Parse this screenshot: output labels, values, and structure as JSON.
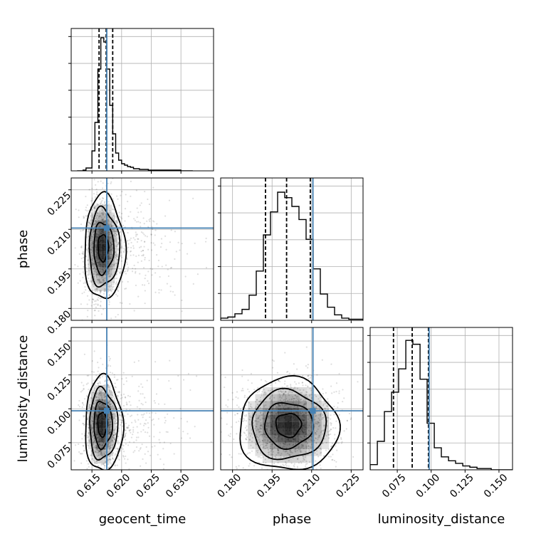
{
  "chart_data": {
    "type": "corner",
    "parameters": [
      "geocent_time",
      "phase",
      "luminosity_distance"
    ],
    "truth_color": "#4682b4",
    "grid": true,
    "axes": {
      "geocent_time": {
        "range": [
          0.6115,
          0.6355
        ],
        "ticks": [
          0.615,
          0.62,
          0.625,
          0.63
        ],
        "tick_labels": [
          "0.615",
          "0.620",
          "0.625",
          "0.630"
        ]
      },
      "phase": {
        "range": [
          0.1755,
          0.2295
        ],
        "ticks": [
          0.18,
          0.195,
          0.21,
          0.225
        ],
        "tick_labels": [
          "0.180",
          "0.195",
          "0.210",
          "0.225"
        ]
      },
      "luminosity_distance": {
        "range": [
          0.055,
          0.16
        ],
        "ticks": [
          0.075,
          0.1,
          0.125,
          0.15
        ],
        "tick_labels": [
          "0.075",
          "0.100",
          "0.125",
          "0.150"
        ]
      }
    },
    "truths": {
      "geocent_time": 0.6175,
      "phase": 0.2105,
      "luminosity_distance": 0.0985
    },
    "quantiles": {
      "geocent_time": [
        0.6162,
        0.6174,
        0.6185
      ],
      "phase": [
        0.1925,
        0.2005,
        0.2095
      ],
      "luminosity_distance": [
        0.0722,
        0.086,
        0.098
      ]
    },
    "histograms": {
      "geocent_time": {
        "edges": [
          0.6125,
          0.613,
          0.6135,
          0.614,
          0.6145,
          0.615,
          0.6155,
          0.616,
          0.6165,
          0.617,
          0.6175,
          0.618,
          0.6185,
          0.619,
          0.6195,
          0.62,
          0.6205,
          0.621,
          0.6215,
          0.622,
          0.6225,
          0.623,
          0.6235,
          0.624,
          0.6245,
          0.625,
          0.6255,
          0.626,
          0.6265,
          0.627,
          0.6275,
          0.628,
          0.6285,
          0.629,
          0.6295,
          0.63,
          0.6305,
          0.631,
          0.6315,
          0.632
        ],
        "counts": [
          0,
          0,
          1,
          4,
          4,
          28,
          68,
          143,
          187,
          181,
          143,
          92,
          52,
          25,
          15,
          10,
          8,
          6,
          5,
          3,
          3,
          2,
          2,
          2,
          1,
          1,
          1,
          1,
          1,
          1,
          1,
          1,
          1,
          1,
          1,
          0,
          0,
          0,
          0
        ],
        "ylim": [
          0,
          200
        ]
      },
      "phase": {
        "edges": [
          0.1755,
          0.1782,
          0.1809,
          0.1836,
          0.1863,
          0.189,
          0.1917,
          0.1944,
          0.1971,
          0.1998,
          0.2025,
          0.2052,
          0.2079,
          0.2106,
          0.2133,
          0.216,
          0.2187,
          0.2214,
          0.2241,
          0.2268,
          0.2295
        ],
        "counts": [
          2,
          3,
          6,
          10,
          23,
          45,
          78,
          99,
          117,
          112,
          104,
          92,
          74,
          47,
          24,
          12,
          5,
          2,
          1,
          1
        ],
        "ylim": [
          0,
          130
        ]
      },
      "luminosity_distance": {
        "edges": [
          0.055,
          0.0603,
          0.0655,
          0.0708,
          0.076,
          0.0813,
          0.0865,
          0.0918,
          0.097,
          0.1023,
          0.1075,
          0.1128,
          0.118,
          0.1233,
          0.1285,
          0.1338,
          0.139,
          0.1443,
          0.1495,
          0.1548,
          0.16
        ],
        "counts": [
          4,
          22,
          45,
          60,
          78,
          100,
          97,
          70,
          36,
          17,
          10,
          7,
          5,
          3,
          2,
          1,
          1,
          0,
          0,
          0
        ],
        "ylim": [
          0,
          110
        ]
      }
    },
    "pair_2d": [
      {
        "x": "geocent_time",
        "y": "phase",
        "center": [
          0.6168,
          0.203
        ],
        "sigma": [
          0.0013,
          0.0085
        ],
        "tail_x": 0.0045
      },
      {
        "x": "geocent_time",
        "y": "luminosity_distance",
        "center": [
          0.6167,
          0.0885
        ],
        "sigma": [
          0.0012,
          0.015
        ],
        "tail_x": 0.004
      },
      {
        "x": "phase",
        "y": "luminosity_distance",
        "center": [
          0.2012,
          0.088
        ],
        "sigma": [
          0.008,
          0.0145
        ],
        "tail_x": 0.0
      }
    ]
  }
}
